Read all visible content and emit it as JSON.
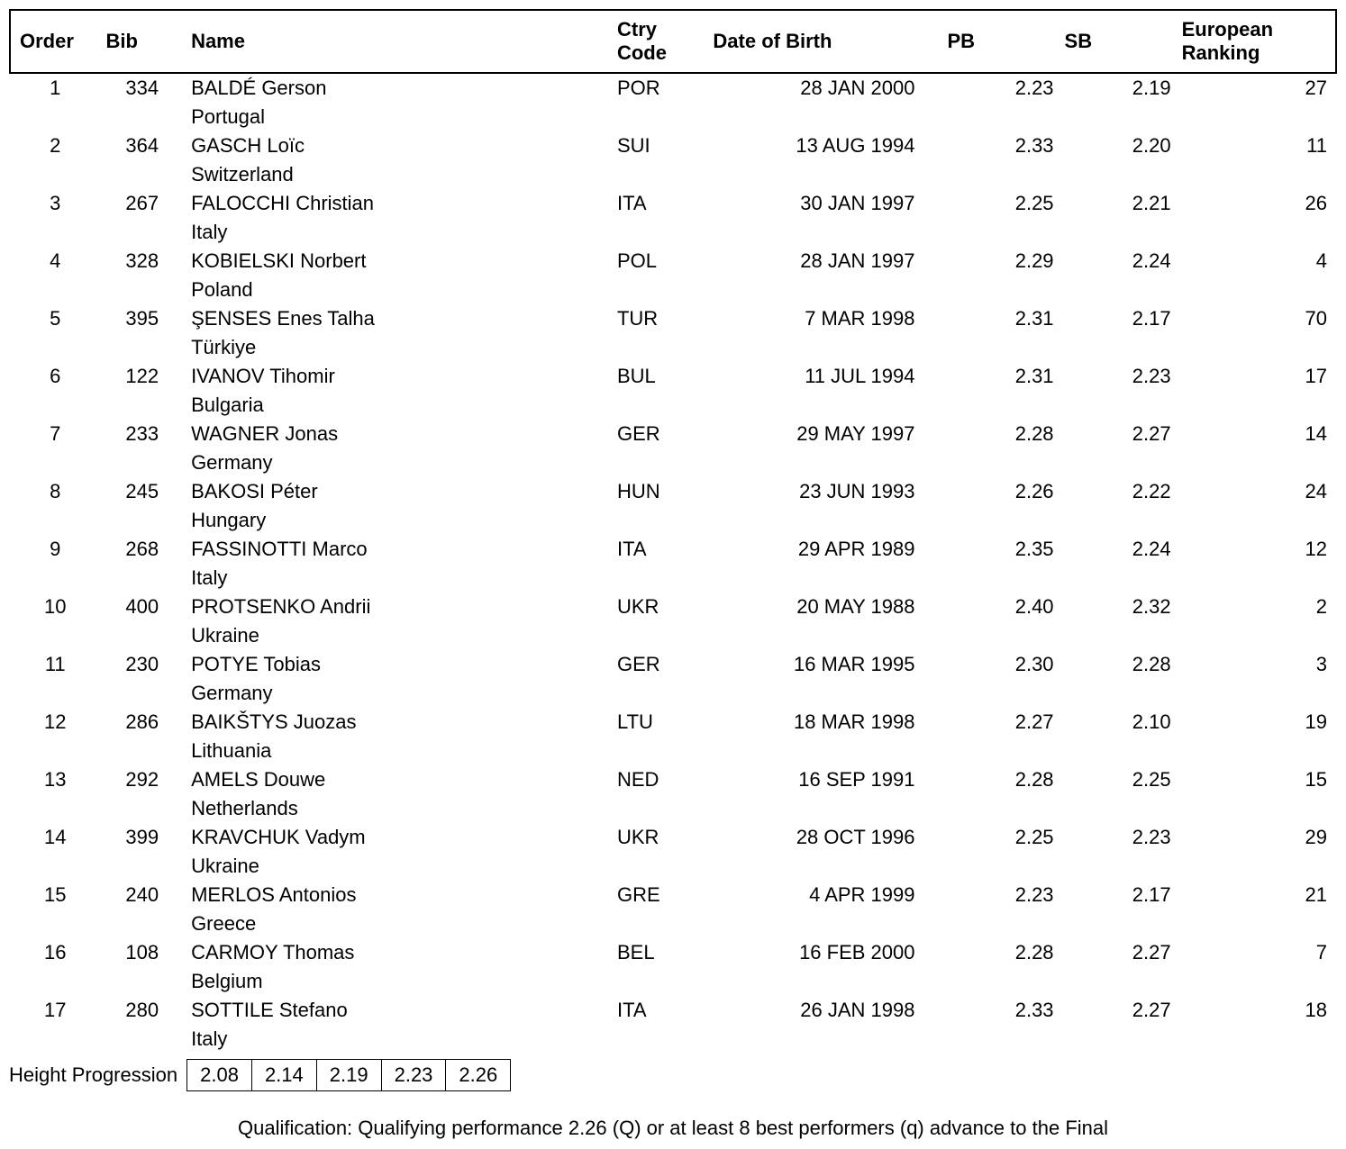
{
  "columns": {
    "order": "Order",
    "bib": "Bib",
    "name": "Name",
    "ctry": "Ctry Code",
    "dob": "Date of Birth",
    "pb": "PB",
    "sb": "SB",
    "rank": "European Ranking"
  },
  "rows": [
    {
      "order": "1",
      "bib": "334",
      "name": "BALDÉ Gerson",
      "country": "Portugal",
      "ctry": "POR",
      "dob": "28 JAN 2000",
      "pb": "2.23",
      "sb": "2.19",
      "rank": "27"
    },
    {
      "order": "2",
      "bib": "364",
      "name": "GASCH Loïc",
      "country": "Switzerland",
      "ctry": "SUI",
      "dob": "13 AUG 1994",
      "pb": "2.33",
      "sb": "2.20",
      "rank": "11"
    },
    {
      "order": "3",
      "bib": "267",
      "name": "FALOCCHI Christian",
      "country": "Italy",
      "ctry": "ITA",
      "dob": "30 JAN 1997",
      "pb": "2.25",
      "sb": "2.21",
      "rank": "26"
    },
    {
      "order": "4",
      "bib": "328",
      "name": "KOBIELSKI Norbert",
      "country": "Poland",
      "ctry": "POL",
      "dob": "28 JAN 1997",
      "pb": "2.29",
      "sb": "2.24",
      "rank": "4"
    },
    {
      "order": "5",
      "bib": "395",
      "name": "ŞENSES Enes Talha",
      "country": "Türkiye",
      "ctry": "TUR",
      "dob": "7 MAR 1998",
      "pb": "2.31",
      "sb": "2.17",
      "rank": "70"
    },
    {
      "order": "6",
      "bib": "122",
      "name": "IVANOV Tihomir",
      "country": "Bulgaria",
      "ctry": "BUL",
      "dob": "11 JUL 1994",
      "pb": "2.31",
      "sb": "2.23",
      "rank": "17"
    },
    {
      "order": "7",
      "bib": "233",
      "name": "WAGNER Jonas",
      "country": "Germany",
      "ctry": "GER",
      "dob": "29 MAY 1997",
      "pb": "2.28",
      "sb": "2.27",
      "rank": "14"
    },
    {
      "order": "8",
      "bib": "245",
      "name": "BAKOSI Péter",
      "country": "Hungary",
      "ctry": "HUN",
      "dob": "23 JUN 1993",
      "pb": "2.26",
      "sb": "2.22",
      "rank": "24"
    },
    {
      "order": "9",
      "bib": "268",
      "name": "FASSINOTTI Marco",
      "country": "Italy",
      "ctry": "ITA",
      "dob": "29 APR 1989",
      "pb": "2.35",
      "sb": "2.24",
      "rank": "12"
    },
    {
      "order": "10",
      "bib": "400",
      "name": "PROTSENKO Andrii",
      "country": "Ukraine",
      "ctry": "UKR",
      "dob": "20 MAY 1988",
      "pb": "2.40",
      "sb": "2.32",
      "rank": "2"
    },
    {
      "order": "11",
      "bib": "230",
      "name": "POTYE Tobias",
      "country": "Germany",
      "ctry": "GER",
      "dob": "16 MAR 1995",
      "pb": "2.30",
      "sb": "2.28",
      "rank": "3"
    },
    {
      "order": "12",
      "bib": "286",
      "name": "BAIKŠTYS Juozas",
      "country": "Lithuania",
      "ctry": "LTU",
      "dob": "18 MAR 1998",
      "pb": "2.27",
      "sb": "2.10",
      "rank": "19"
    },
    {
      "order": "13",
      "bib": "292",
      "name": "AMELS Douwe",
      "country": "Netherlands",
      "ctry": "NED",
      "dob": "16 SEP 1991",
      "pb": "2.28",
      "sb": "2.25",
      "rank": "15"
    },
    {
      "order": "14",
      "bib": "399",
      "name": "KRAVCHUK Vadym",
      "country": "Ukraine",
      "ctry": "UKR",
      "dob": "28 OCT 1996",
      "pb": "2.25",
      "sb": "2.23",
      "rank": "29"
    },
    {
      "order": "15",
      "bib": "240",
      "name": "MERLOS Antonios",
      "country": "Greece",
      "ctry": "GRE",
      "dob": "4 APR 1999",
      "pb": "2.23",
      "sb": "2.17",
      "rank": "21"
    },
    {
      "order": "16",
      "bib": "108",
      "name": "CARMOY Thomas",
      "country": "Belgium",
      "ctry": "BEL",
      "dob": "16 FEB 2000",
      "pb": "2.28",
      "sb": "2.27",
      "rank": "7"
    },
    {
      "order": "17",
      "bib": "280",
      "name": "SOTTILE Stefano",
      "country": "Italy",
      "ctry": "ITA",
      "dob": "26 JAN 1998",
      "pb": "2.33",
      "sb": "2.27",
      "rank": "18"
    }
  ],
  "progression": {
    "label": "Height Progression",
    "heights": [
      "2.08",
      "2.14",
      "2.19",
      "2.23",
      "2.26"
    ]
  },
  "qualification_note": "Qualification: Qualifying performance 2.26 (Q) or at least 8 best performers (q) advance to the Final"
}
